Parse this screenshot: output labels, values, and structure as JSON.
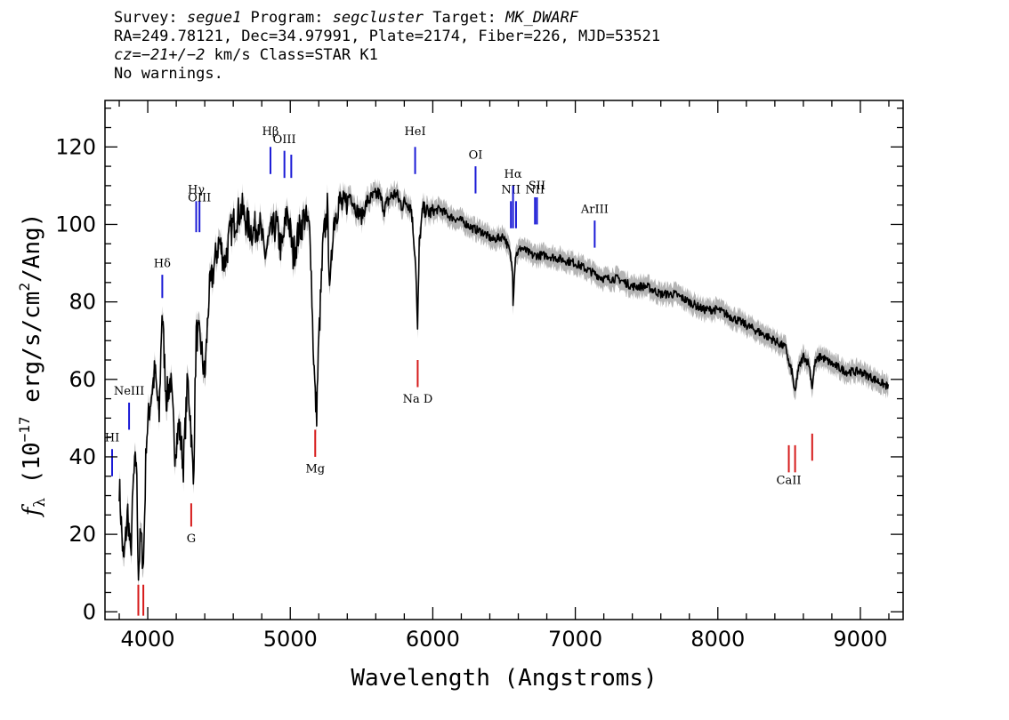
{
  "header": {
    "line1": {
      "survey_label": "Survey: ",
      "survey": "segue1",
      "program_label": " Program: ",
      "program": "segcluster",
      "target_label": " Target: ",
      "target": "MK_DWARF"
    },
    "line2": "RA=249.78121, Dec=34.97991, Plate=2174, Fiber=226, MJD=53521",
    "line3": {
      "cz_label": "cz=",
      "cz": "−21+/−2",
      "cz_rest": " km/s Class=STAR K1"
    },
    "line4": "No warnings."
  },
  "chart_data": {
    "type": "line",
    "title": "",
    "xlabel": "Wavelength (Angstroms)",
    "ylabel": {
      "prefix": "f",
      "subscript": "λ",
      "unit_open": " (10",
      "exp1": "−17",
      "unit_mid": " erg/s/cm",
      "exp2": "2",
      "unit_close": "/Ang)"
    },
    "xlim": [
      3700,
      9300
    ],
    "ylim": [
      -2,
      132
    ],
    "x_ticks": [
      4000,
      5000,
      6000,
      7000,
      8000,
      9000
    ],
    "x_tick_labels": [
      "4000",
      "5000",
      "6000",
      "7000",
      "8000",
      "9000"
    ],
    "y_ticks": [
      0,
      20,
      40,
      60,
      80,
      100,
      120
    ],
    "y_tick_labels": [
      "0",
      "20",
      "40",
      "60",
      "80",
      "100",
      "120"
    ],
    "x_minor_step": 200,
    "y_minor_step": 5,
    "series": [
      {
        "color": "#000000",
        "error_color": "#b4b4b4",
        "x": [
          3800,
          3830,
          3860,
          3880,
          3900,
          3920,
          3935,
          3950,
          3970,
          3990,
          4020,
          4050,
          4080,
          4100,
          4130,
          4160,
          4190,
          4220,
          4250,
          4280,
          4300,
          4320,
          4340,
          4370,
          4400,
          4430,
          4460,
          4500,
          4540,
          4580,
          4620,
          4660,
          4700,
          4740,
          4780,
          4820,
          4860,
          4900,
          4940,
          4980,
          5020,
          5060,
          5100,
          5140,
          5160,
          5175,
          5185,
          5200,
          5230,
          5260,
          5280,
          5300,
          5340,
          5380,
          5420,
          5460,
          5500,
          5540,
          5580,
          5620,
          5660,
          5700,
          5740,
          5780,
          5820,
          5850,
          5880,
          5893,
          5905,
          5930,
          5980,
          6050,
          6120,
          6200,
          6280,
          6350,
          6420,
          6500,
          6540,
          6560,
          6563,
          6580,
          6620,
          6700,
          6800,
          6900,
          7000,
          7100,
          7200,
          7300,
          7400,
          7500,
          7600,
          7700,
          7800,
          7900,
          8000,
          8100,
          8200,
          8300,
          8400,
          8480,
          8498,
          8520,
          8542,
          8560,
          8600,
          8640,
          8662,
          8680,
          8720,
          8800,
          8900,
          9000,
          9100,
          9200
        ],
        "y": [
          33,
          12,
          26,
          14,
          34,
          40,
          10,
          20,
          12,
          45,
          55,
          62,
          50,
          78,
          55,
          60,
          42,
          48,
          38,
          60,
          50,
          33,
          72,
          70,
          60,
          82,
          88,
          96,
          90,
          98,
          102,
          104,
          100,
          98,
          101,
          92,
          97,
          100,
          93,
          104,
          92,
          98,
          102,
          98,
          70,
          55,
          52,
          70,
          95,
          104,
          82,
          100,
          106,
          104,
          108,
          104,
          102,
          106,
          107,
          108,
          104,
          107,
          108,
          105,
          106,
          104,
          90,
          72,
          95,
          104,
          103,
          104,
          102,
          101,
          99,
          98,
          96,
          97,
          93,
          88,
          80,
          92,
          94,
          92,
          92,
          91,
          90,
          88,
          86,
          86,
          84,
          84,
          82,
          82,
          80,
          78,
          78,
          76,
          74,
          72,
          70,
          68,
          64,
          62,
          56,
          62,
          66,
          64,
          58,
          64,
          66,
          64,
          62,
          62,
          60,
          58
        ]
      }
    ],
    "emission_lines": [
      {
        "label": "Hδ",
        "x": 4102,
        "y0": 81,
        "y1": 87,
        "label_y": 89
      },
      {
        "label": "Hγ",
        "x": 4340,
        "y0": 98,
        "y1": 106,
        "label_y": 108
      },
      {
        "label": "OIII",
        "x": 4363,
        "y0": 98,
        "y1": 106,
        "label_y": 106
      },
      {
        "label": "Hβ",
        "x": 4861,
        "y0": 113,
        "y1": 120,
        "label_y": 123
      },
      {
        "label": "OIII",
        "x": 4959,
        "y0": 112,
        "y1": 119,
        "label_y": 121
      },
      {
        "label": "",
        "x": 5007,
        "y0": 112,
        "y1": 118,
        "label_y": 0
      },
      {
        "label": "HeI",
        "x": 5876,
        "y0": 113,
        "y1": 120,
        "label_y": 123
      },
      {
        "label": "OI",
        "x": 6300,
        "y0": 108,
        "y1": 115,
        "label_y": 117
      },
      {
        "label": "NII",
        "x": 6548,
        "y0": 99,
        "y1": 106,
        "label_y": 108
      },
      {
        "label": "Hα",
        "x": 6563,
        "y0": 99,
        "y1": 110,
        "label_y": 112
      },
      {
        "label": "",
        "x": 6584,
        "y0": 99,
        "y1": 106,
        "label_y": 0
      },
      {
        "label": "NII",
        "x": 6717,
        "y0": 100,
        "y1": 107,
        "label_y": 108
      },
      {
        "label": "SII",
        "x": 6731,
        "y0": 100,
        "y1": 107,
        "label_y": 109
      },
      {
        "label": "ArIII",
        "x": 7136,
        "y0": 94,
        "y1": 101,
        "label_y": 103
      },
      {
        "label": "NeIII",
        "x": 3869,
        "y0": 47,
        "y1": 54,
        "label_y": 56
      },
      {
        "label": "HI",
        "x": 3750,
        "y0": 35,
        "y1": 42,
        "label_y": 44
      }
    ],
    "absorption_lines": [
      {
        "label": "",
        "x": 3934,
        "y0": -1,
        "y1": 7,
        "label_y": -5
      },
      {
        "label": "",
        "x": 3969,
        "y0": -1,
        "y1": 7,
        "label_y": -5
      },
      {
        "label": "G",
        "x": 4305,
        "y0": 22,
        "y1": 28,
        "label_y": 18
      },
      {
        "label": "Mg",
        "x": 5175,
        "y0": 40,
        "y1": 47,
        "label_y": 36
      },
      {
        "label": "Na D",
        "x": 5894,
        "y0": 58,
        "y1": 65,
        "label_y": 54
      },
      {
        "label": "CaII",
        "x": 8498,
        "y0": 36,
        "y1": 43,
        "label_y": 33
      },
      {
        "label": "",
        "x": 8542,
        "y0": 36,
        "y1": 43,
        "label_y": 0
      },
      {
        "label": "",
        "x": 8662,
        "y0": 39,
        "y1": 46,
        "label_y": 0
      }
    ],
    "emission_color": "#1a1ad6",
    "absorption_color": "#d61a1a"
  }
}
